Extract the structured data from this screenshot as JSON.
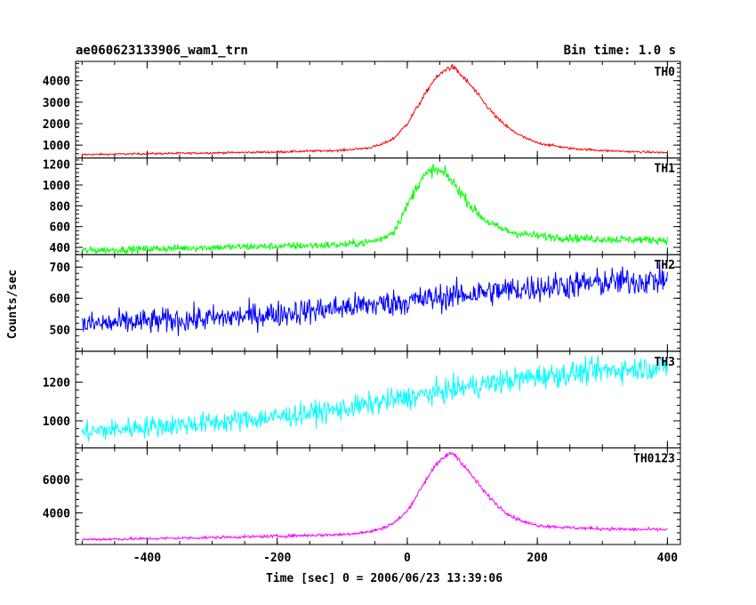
{
  "chart_data": {
    "type": "line",
    "title": "ae060623133906_wam1_trn",
    "subtitle": "Bin time: 1.0 s",
    "xlabel": "Time [sec] 0 = 2006/06/23 13:39:06",
    "ylabel": "Counts/sec",
    "xlim": [
      -510,
      420
    ],
    "xticks": [
      -400,
      -200,
      0,
      200,
      400
    ],
    "panels": [
      {
        "name": "TH0",
        "color": "#ff0000",
        "ylim": [
          400,
          4900
        ],
        "yticks": [
          1000,
          2000,
          3000,
          4000
        ],
        "series": {
          "x": [
            -500,
            -400,
            -300,
            -200,
            -100,
            -60,
            -40,
            -20,
            0,
            20,
            40,
            60,
            70,
            80,
            100,
            120,
            140,
            160,
            180,
            200,
            250,
            300,
            350,
            400
          ],
          "y": [
            560,
            600,
            640,
            680,
            760,
            870,
            1020,
            1330,
            2000,
            3000,
            4000,
            4550,
            4650,
            4350,
            3700,
            2900,
            2200,
            1700,
            1350,
            1100,
            850,
            750,
            690,
            650
          ]
        }
      },
      {
        "name": "TH1",
        "color": "#00ff00",
        "ylim": [
          330,
          1260
        ],
        "yticks": [
          400,
          600,
          800,
          1000,
          1200
        ],
        "series": {
          "x": [
            -500,
            -400,
            -300,
            -200,
            -100,
            -60,
            -40,
            -20,
            0,
            20,
            40,
            60,
            80,
            100,
            120,
            140,
            160,
            200,
            250,
            300,
            350,
            400
          ],
          "y": [
            370,
            385,
            400,
            410,
            425,
            450,
            480,
            560,
            800,
            1050,
            1150,
            1100,
            950,
            780,
            660,
            590,
            545,
            510,
            490,
            480,
            475,
            470
          ]
        }
      },
      {
        "name": "TH2",
        "color": "#0000ff",
        "ylim": [
          430,
          740
        ],
        "yticks": [
          500,
          600,
          700
        ],
        "series": {
          "x": [
            -500,
            -400,
            -300,
            -200,
            -100,
            0,
            100,
            200,
            300,
            400
          ],
          "y": [
            515,
            525,
            535,
            550,
            570,
            590,
            615,
            635,
            650,
            660
          ]
        }
      },
      {
        "name": "TH3",
        "color": "#00ffff",
        "ylim": [
          860,
          1360
        ],
        "yticks": [
          1000,
          1200
        ],
        "series": {
          "x": [
            -500,
            -400,
            -300,
            -200,
            -100,
            0,
            100,
            200,
            300,
            400
          ],
          "y": [
            940,
            970,
            990,
            1020,
            1060,
            1120,
            1180,
            1230,
            1260,
            1280
          ]
        }
      },
      {
        "name": "TH0123",
        "color": "#ff00ff",
        "ylim": [
          2100,
          7900
        ],
        "yticks": [
          4000,
          6000
        ],
        "series": {
          "x": [
            -500,
            -400,
            -300,
            -200,
            -100,
            -60,
            -40,
            -20,
            0,
            20,
            40,
            60,
            70,
            80,
            100,
            120,
            140,
            160,
            180,
            200,
            250,
            300,
            350,
            400
          ],
          "y": [
            2400,
            2450,
            2520,
            2600,
            2700,
            2850,
            3050,
            3400,
            4100,
            5400,
            6700,
            7450,
            7600,
            7200,
            6200,
            5200,
            4400,
            3800,
            3450,
            3250,
            3100,
            3050,
            3000,
            3000
          ]
        }
      }
    ]
  }
}
